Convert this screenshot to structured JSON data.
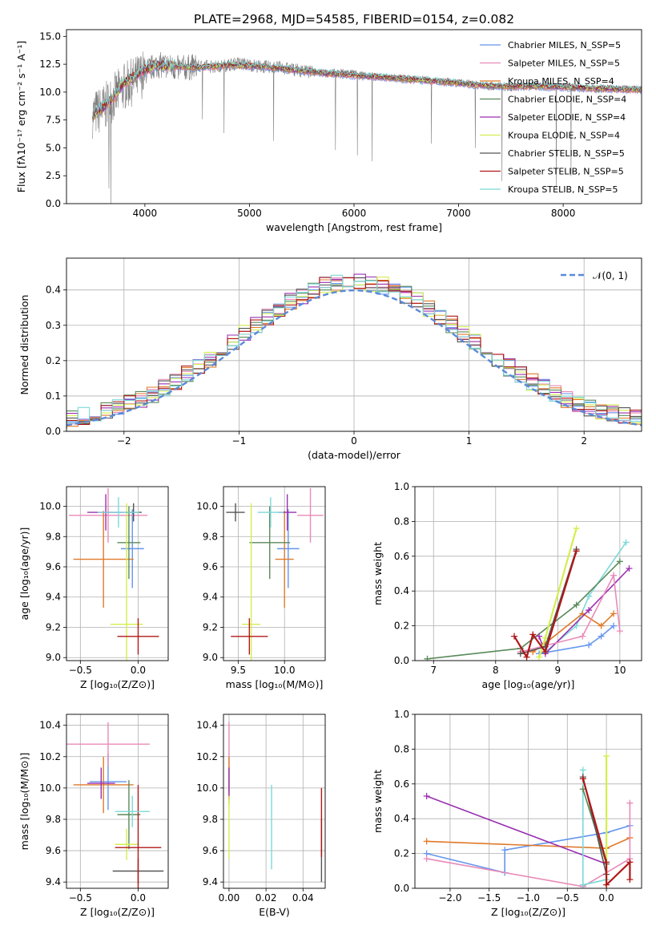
{
  "colors": {
    "Chabrier MILES": "#6495ed",
    "Salpeter MILES": "#e88ab8",
    "Kroupa MILES": "#e07a2a",
    "Chabrier ELODIE": "#5a8a5a",
    "Salpeter ELODIE": "#9a30b0",
    "Kroupa ELODIE": "#d4ee50",
    "Chabrier STELIB": "#555555",
    "Salpeter STELIB": "#b01818",
    "Kroupa STELIB": "#7dd8d8"
  },
  "chart_data": [
    {
      "id": "spectrum",
      "type": "line",
      "title": "PLATE=2968, MJD=54585, FIBERID=0154, z=0.082",
      "xlabel": "wavelength [Angstrom, rest frame]",
      "ylabel": "Flux [fλ10⁻¹⁷ erg cm⁻² s⁻¹ A⁻¹]",
      "xlim": [
        3250,
        8750
      ],
      "ylim": [
        0,
        15.6
      ],
      "xticks": [
        4000,
        5000,
        6000,
        7000,
        8000
      ],
      "yticks": [
        0.0,
        2.5,
        5.0,
        7.5,
        10.0,
        12.5,
        15.0
      ],
      "grid": false,
      "legend_position": "upper-right",
      "legend": [
        "Chabrier MILES, N_SSP=5",
        "Salpeter MILES, N_SSP=5",
        "Kroupa MILES, N_SSP=4",
        "Chabrier ELODIE, N_SSP=4",
        "Salpeter ELODIE, N_SSP=4",
        "Kroupa ELODIE, N_SSP=4",
        "Chabrier STELIB, N_SSP=5",
        "Salpeter STELIB, N_SSP=5",
        "Kroupa STELIB, N_SSP=5"
      ],
      "data_trend": {
        "wavelength": [
          3500,
          3600,
          3700,
          3800,
          3900,
          4000,
          4100,
          4200,
          4300,
          4500,
          4700,
          4900,
          5100,
          5300,
          5500,
          5700,
          5900,
          6100,
          6300,
          6500,
          6700,
          6900,
          7100,
          7300,
          7500,
          7700,
          7900,
          8100,
          8300,
          8500,
          8750
        ],
        "flux": [
          8.0,
          8.5,
          9.5,
          10.5,
          11.0,
          11.8,
          12.4,
          12.4,
          12.1,
          12.3,
          12.3,
          12.6,
          12.3,
          12.2,
          11.9,
          11.7,
          11.8,
          11.5,
          11.3,
          11.2,
          11.1,
          10.8,
          10.8,
          10.5,
          10.4,
          10.6,
          10.5,
          10.4,
          10.3,
          10.3,
          10.2
        ]
      },
      "model_trend": {
        "wavelength": [
          3500,
          3600,
          3700,
          3800,
          3900,
          4000,
          4100,
          4300,
          4500,
          4800,
          5100,
          5400,
          5700,
          6000,
          6300,
          6600,
          6900,
          7200,
          7500,
          7800,
          8100,
          8400,
          8750
        ],
        "flux": [
          8.0,
          8.6,
          9.6,
          10.8,
          11.4,
          12.0,
          12.4,
          12.3,
          12.2,
          12.4,
          12.3,
          12.0,
          11.7,
          11.5,
          11.3,
          11.1,
          10.9,
          10.6,
          10.5,
          10.5,
          10.4,
          10.3,
          10.2
        ]
      }
    },
    {
      "id": "residuals",
      "type": "step",
      "xlabel": "(data-model)/error",
      "ylabel": "Normed distribution",
      "xlim": [
        -2.5,
        2.5
      ],
      "ylim": [
        0,
        0.49
      ],
      "xticks": [
        -2,
        -1,
        0,
        1,
        2
      ],
      "yticks": [
        0.0,
        0.1,
        0.2,
        0.3,
        0.4
      ],
      "grid": true,
      "legend_position": "upper-right",
      "legend": [
        "𝒩(0, 1)"
      ],
      "reference": {
        "name": "𝒩(0, 1)",
        "mean": 0,
        "sigma": 1,
        "color": "#5a8ad8"
      }
    },
    {
      "id": "age-vs-Z",
      "type": "errorbar",
      "xlabel": "Z [log₁₀(Z/Z⊙)]",
      "ylabel": "age  [log₁₀(age/yr)]",
      "xlim": [
        -0.62,
        0.26
      ],
      "ylim": [
        8.98,
        10.13
      ],
      "xticks": [
        -0.5,
        0.0
      ],
      "yticks": [
        9.0,
        9.2,
        9.4,
        9.6,
        9.8,
        10.0
      ],
      "grid": true,
      "points": [
        {
          "model": "Chabrier MILES",
          "x": -0.05,
          "xerr": 0.1,
          "y": 9.72,
          "yerr": 0.26
        },
        {
          "model": "Salpeter MILES",
          "x": -0.26,
          "xerr": 0.34,
          "y": 9.94,
          "yerr": 0.18
        },
        {
          "model": "Kroupa MILES",
          "x": -0.3,
          "xerr": 0.26,
          "y": 9.65,
          "yerr": 0.32
        },
        {
          "model": "Chabrier ELODIE",
          "x": -0.08,
          "xerr": 0.1,
          "y": 9.76,
          "yerr": 0.24
        },
        {
          "model": "Salpeter ELODIE",
          "x": -0.28,
          "xerr": 0.16,
          "y": 9.96,
          "yerr": 0.12
        },
        {
          "model": "Kroupa ELODIE",
          "x": -0.1,
          "xerr": 0.14,
          "y": 9.22,
          "yerr": 0.8
        },
        {
          "model": "Chabrier STELIB",
          "x": -0.04,
          "xerr": 0.07,
          "y": 9.96,
          "yerr": 0.06
        },
        {
          "model": "Salpeter STELIB",
          "x": 0.0,
          "xerr": 0.18,
          "y": 9.14,
          "yerr": 0.12
        },
        {
          "model": "Kroupa STELIB",
          "x": -0.17,
          "xerr": 0.18,
          "y": 9.96,
          "yerr": 0.1
        }
      ]
    },
    {
      "id": "age-vs-mass",
      "type": "errorbar",
      "xlabel": "mass [log₁₀(M/M⊙)]",
      "ylabel": "",
      "xlim": [
        9.34,
        10.44
      ],
      "ylim": [
        8.98,
        10.13
      ],
      "xticks": [
        9.5,
        10.0
      ],
      "yticks": [
        9.0,
        9.2,
        9.4,
        9.6,
        9.8,
        10.0
      ],
      "grid": true,
      "points": [
        {
          "model": "Chabrier MILES",
          "x": 10.04,
          "xerr": 0.12,
          "y": 9.72,
          "yerr": 0.26
        },
        {
          "model": "Salpeter MILES",
          "x": 10.28,
          "xerr": 0.14,
          "y": 9.94,
          "yerr": 0.18
        },
        {
          "model": "Kroupa MILES",
          "x": 10.0,
          "xerr": 0.1,
          "y": 9.65,
          "yerr": 0.32
        },
        {
          "model": "Chabrier ELODIE",
          "x": 9.84,
          "xerr": 0.22,
          "y": 9.76,
          "yerr": 0.24
        },
        {
          "model": "Salpeter ELODIE",
          "x": 10.03,
          "xerr": 0.1,
          "y": 9.96,
          "yerr": 0.12
        },
        {
          "model": "Kroupa ELODIE",
          "x": 9.64,
          "xerr": 0.1,
          "y": 9.22,
          "yerr": 0.8
        },
        {
          "model": "Chabrier STELIB",
          "x": 9.47,
          "xerr": 0.1,
          "y": 9.96,
          "yerr": 0.06
        },
        {
          "model": "Salpeter STELIB",
          "x": 9.62,
          "xerr": 0.2,
          "y": 9.14,
          "yerr": 0.12
        },
        {
          "model": "Kroupa STELIB",
          "x": 9.85,
          "xerr": 0.14,
          "y": 9.96,
          "yerr": 0.1
        }
      ]
    },
    {
      "id": "mass-weight-vs-age",
      "type": "line",
      "xlabel": "age  [log₁₀(age/yr)]",
      "ylabel": "mass weight",
      "xlim": [
        6.7,
        10.35
      ],
      "ylim": [
        0,
        1
      ],
      "xticks": [
        7,
        8,
        9,
        10
      ],
      "yticks": [
        0.0,
        0.2,
        0.4,
        0.6,
        0.8,
        1.0
      ],
      "grid": true,
      "series": [
        {
          "model": "Kroupa STELIB",
          "x": [
            8.8,
            9.3,
            9.5,
            10.1
          ],
          "y": [
            0.05,
            0.2,
            0.37,
            0.68
          ]
        },
        {
          "model": "Chabrier ELODIE",
          "x": [
            6.9,
            8.4,
            9.3,
            10.0
          ],
          "y": [
            0.01,
            0.07,
            0.32,
            0.57
          ]
        },
        {
          "model": "Kroupa MILES",
          "x": [
            8.6,
            8.8,
            9.4,
            9.7,
            9.9
          ],
          "y": [
            0.05,
            0.1,
            0.27,
            0.2,
            0.27
          ]
        },
        {
          "model": "Salpeter ELODIE",
          "x": [
            8.7,
            8.8,
            9.5,
            10.15
          ],
          "y": [
            0.14,
            0.04,
            0.29,
            0.53
          ]
        },
        {
          "model": "Chabrier MILES",
          "x": [
            8.7,
            9.5,
            9.7,
            9.9
          ],
          "y": [
            0.04,
            0.09,
            0.14,
            0.2
          ]
        },
        {
          "model": "Salpeter MILES",
          "x": [
            8.4,
            9.4,
            9.9,
            10.0
          ],
          "y": [
            0.05,
            0.14,
            0.49,
            0.17
          ]
        },
        {
          "model": "Kroupa ELODIE",
          "x": [
            8.7,
            8.8,
            9.3
          ],
          "y": [
            0.02,
            0.13,
            0.76
          ]
        },
        {
          "model": "Chabrier STELIB",
          "x": [
            8.4,
            8.8,
            9.3
          ],
          "y": [
            0.04,
            0.08,
            0.64
          ]
        },
        {
          "model": "Salpeter STELIB",
          "x": [
            8.3,
            8.5,
            8.6,
            8.8,
            9.3
          ],
          "y": [
            0.14,
            0.02,
            0.15,
            0.05,
            0.63
          ]
        }
      ]
    },
    {
      "id": "mass-vs-Z",
      "type": "errorbar",
      "xlabel": "Z [log₁₀(Z/Z⊙)]",
      "ylabel": "mass [log₁₀(M/M⊙)]",
      "xlim": [
        -0.62,
        0.26
      ],
      "ylim": [
        9.36,
        10.47
      ],
      "xticks": [
        -0.5,
        0.0
      ],
      "yticks": [
        9.4,
        9.6,
        9.8,
        10.0,
        10.2,
        10.4
      ],
      "grid": true,
      "points": [
        {
          "model": "Chabrier MILES",
          "x": -0.26,
          "xerr": 0.16,
          "y": 10.04,
          "yerr": 0.18
        },
        {
          "model": "Salpeter MILES",
          "x": -0.26,
          "xerr": 0.36,
          "y": 10.28,
          "yerr": 0.14
        },
        {
          "model": "Kroupa MILES",
          "x": -0.3,
          "xerr": 0.26,
          "y": 10.02,
          "yerr": 0.18
        },
        {
          "model": "Chabrier ELODIE",
          "x": -0.08,
          "xerr": 0.1,
          "y": 9.83,
          "yerr": 0.22
        },
        {
          "model": "Salpeter ELODIE",
          "x": -0.32,
          "xerr": 0.12,
          "y": 10.03,
          "yerr": 0.1
        },
        {
          "model": "Kroupa ELODIE",
          "x": -0.1,
          "xerr": 0.1,
          "y": 9.64,
          "yerr": 0.1
        },
        {
          "model": "Chabrier STELIB",
          "x": 0.0,
          "xerr": 0.22,
          "y": 9.47,
          "yerr": 0.08
        },
        {
          "model": "Salpeter STELIB",
          "x": 0.0,
          "xerr": 0.2,
          "y": 9.62,
          "yerr": 0.4
        },
        {
          "model": "Kroupa STELIB",
          "x": -0.05,
          "xerr": 0.15,
          "y": 9.85,
          "yerr": 0.1
        }
      ]
    },
    {
      "id": "mass-vs-ebv",
      "type": "errorbar",
      "xlabel": "E(B-V)",
      "ylabel": "",
      "xlim": [
        -0.003,
        0.052
      ],
      "ylim": [
        9.36,
        10.47
      ],
      "xticks": [
        0.0,
        0.02,
        0.04
      ],
      "yticks": [
        9.4,
        9.6,
        9.8,
        10.0,
        10.2,
        10.4
      ],
      "grid": true,
      "points": [
        {
          "model": "Salpeter MILES",
          "x": 0.0,
          "y": 10.2,
          "yerr": 0.22
        },
        {
          "model": "Kroupa MILES",
          "x": 0.0,
          "y": 10.05,
          "yerr": 0.15
        },
        {
          "model": "Salpeter ELODIE",
          "x": 0.0,
          "y": 10.03,
          "yerr": 0.1
        },
        {
          "model": "Kroupa ELODIE",
          "x": 0.0,
          "y": 9.75,
          "yerr": 0.2
        },
        {
          "model": "Kroupa STELIB",
          "x": 0.023,
          "y": 9.75,
          "yerr": 0.27
        },
        {
          "model": "Chabrier STELIB",
          "x": 0.05,
          "y": 9.6,
          "yerr": 0.2
        },
        {
          "model": "Salpeter STELIB",
          "x": 0.05,
          "y": 9.78,
          "yerr": 0.22
        }
      ]
    },
    {
      "id": "mass-weight-vs-Z",
      "type": "line",
      "xlabel": "Z [log₁₀(Z/Z⊙)]",
      "ylabel": "mass weight",
      "xlim": [
        -2.45,
        0.45
      ],
      "ylim": [
        0,
        1
      ],
      "xticks": [
        -2.0,
        -1.5,
        -1.0,
        -0.5,
        0.0
      ],
      "yticks": [
        0.0,
        0.2,
        0.4,
        0.6,
        0.8,
        1.0
      ],
      "grid": true,
      "series": [
        {
          "model": "Chabrier MILES",
          "x": [
            -2.3,
            -1.3,
            -1.3,
            0.0,
            0.3
          ],
          "y": [
            0.2,
            0.09,
            0.22,
            0.32,
            0.36
          ]
        },
        {
          "model": "Kroupa MILES",
          "x": [
            -2.3,
            0.0,
            0.3
          ],
          "y": [
            0.27,
            0.23,
            0.29
          ]
        },
        {
          "model": "Salpeter ELODIE",
          "x": [
            -2.3,
            0.0
          ],
          "y": [
            0.53,
            0.14
          ]
        },
        {
          "model": "Salpeter MILES",
          "x": [
            -2.3,
            -0.3,
            0.3,
            0.3
          ],
          "y": [
            0.17,
            0.01,
            0.17,
            0.49
          ]
        },
        {
          "model": "Kroupa STELIB",
          "x": [
            -0.3,
            -0.3,
            0.0
          ],
          "y": [
            0.68,
            0.02,
            0.05
          ]
        },
        {
          "model": "Chabrier ELODIE",
          "x": [
            -0.3,
            0.0
          ],
          "y": [
            0.57,
            0.14
          ]
        },
        {
          "model": "Chabrier STELIB",
          "x": [
            -0.3,
            0.0
          ],
          "y": [
            0.64,
            0.08
          ]
        },
        {
          "model": "Kroupa ELODIE",
          "x": [
            0.0,
            0.0
          ],
          "y": [
            0.76,
            0.02
          ]
        },
        {
          "model": "Salpeter STELIB",
          "x": [
            -0.3,
            0.0,
            0.0,
            0.3,
            0.3
          ],
          "y": [
            0.63,
            0.15,
            0.02,
            0.15,
            0.05
          ]
        }
      ]
    }
  ]
}
